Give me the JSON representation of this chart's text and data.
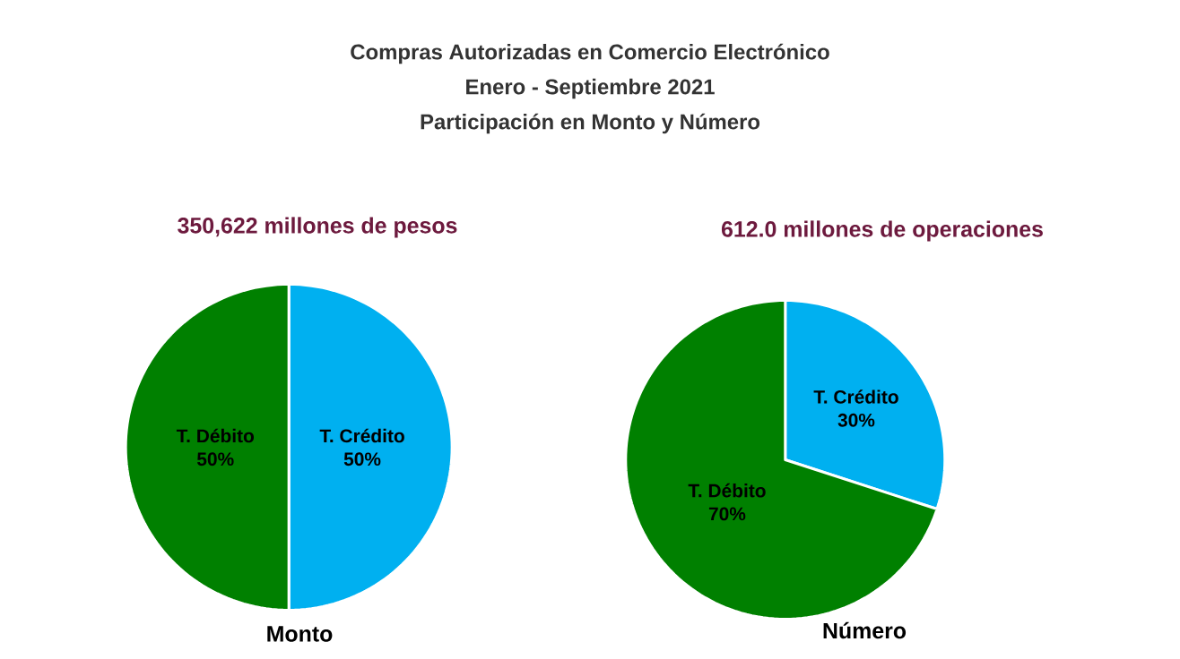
{
  "chart_data": [
    {
      "type": "other",
      "title": "Compras Autorizadas en Comercio Electrónico",
      "annotations": [
        "Enero - Septiembre 2021",
        "Participación en Monto y Número"
      ]
    },
    {
      "type": "pie",
      "subtitle": "350,622 millones de pesos",
      "xlabel": "Monto",
      "categories": [
        "T. Crédito",
        "T. Débito"
      ],
      "values": [
        50,
        50
      ],
      "colors": [
        "#00b0f0",
        "#008000"
      ],
      "data_labels": true,
      "value_labels": [
        "50%",
        "50%"
      ]
    },
    {
      "type": "pie",
      "subtitle": "612.0 millones de operaciones",
      "xlabel": "Número",
      "categories": [
        "T. Crédito",
        "T. Débito"
      ],
      "values": [
        30,
        70
      ],
      "colors": [
        "#00b0f0",
        "#008000"
      ],
      "data_labels": true,
      "value_labels": [
        "30%",
        "70%"
      ]
    }
  ]
}
